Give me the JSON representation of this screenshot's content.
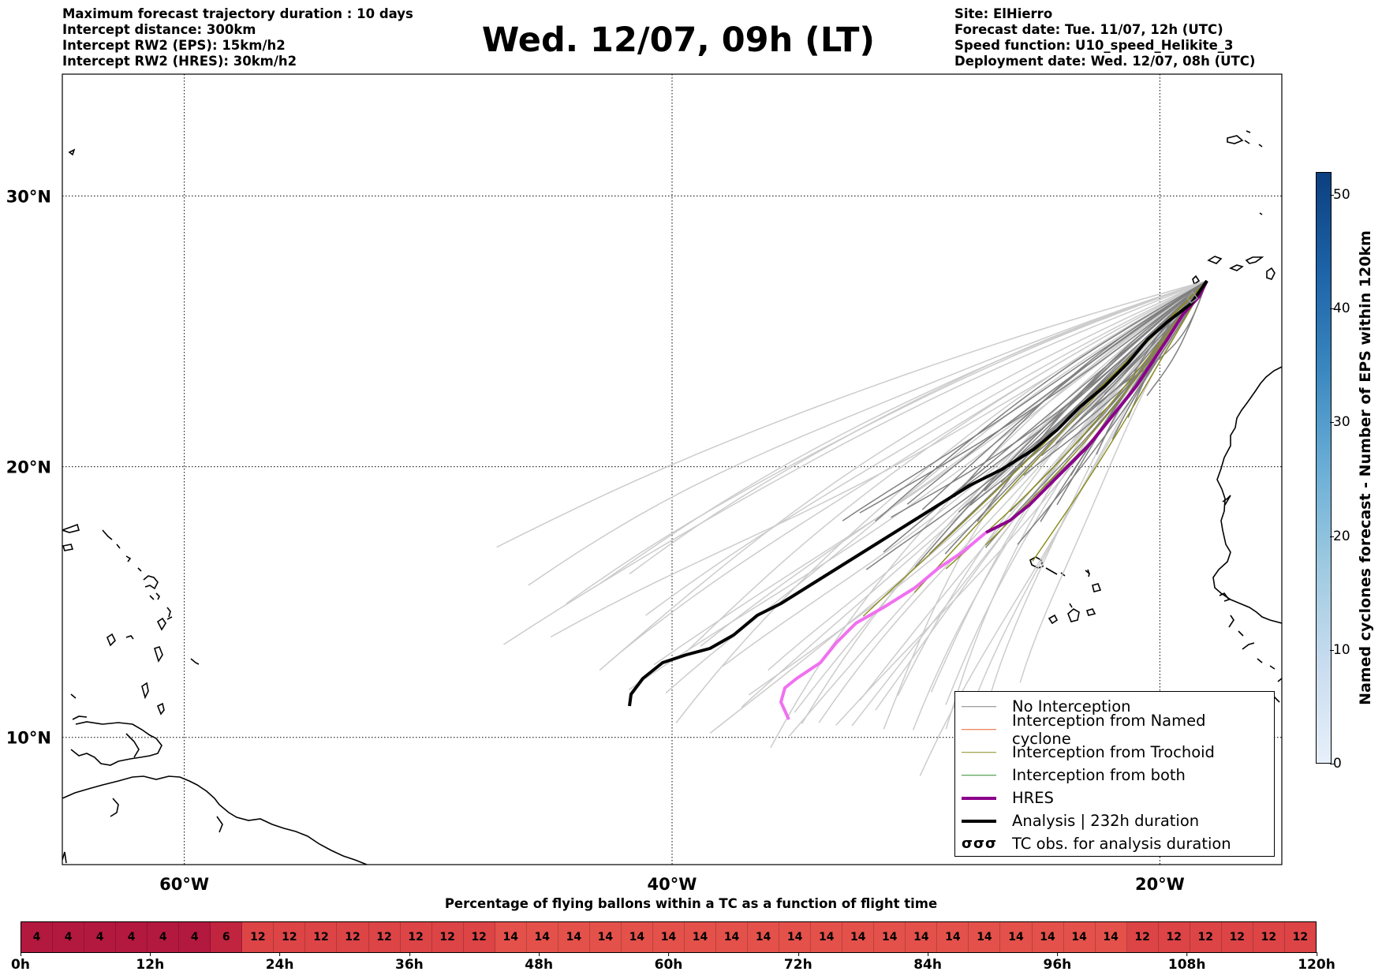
{
  "header": {
    "left_lines": [
      "Maximum forecast trajectory duration : 10 days",
      "Intercept distance: 300km",
      "Intercept RW2 (EPS):  15km/h2",
      "Intercept RW2 (HRES): 30km/h2"
    ],
    "title": "Wed. 12/07, 09h (LT)",
    "right_lines": [
      "Site: ElHierro",
      "Forecast date: Tue. 11/07, 12h (UTC)",
      "Speed function: U10_speed_Helikite_3",
      "Deployment date: Wed. 12/07, 08h (UTC)"
    ]
  },
  "map": {
    "lon_range": [
      -65,
      -15
    ],
    "lat_range": [
      5.3,
      34.5
    ],
    "lat_labels": [
      "30°N",
      "20°N",
      "10°N"
    ],
    "lon_labels": [
      "60°W",
      "40°W",
      "20°W"
    ],
    "colors": {
      "no_interception": "#808080",
      "named_cyclone": "#e8612c",
      "trochoid": "#8b8b1e",
      "both": "#2e8b2e",
      "hres": "#8b008b",
      "analysis": "#000000",
      "eps_far": "#cccccc",
      "hres_far": "#f070f0"
    }
  },
  "legend": {
    "items": [
      {
        "label": "No Interception",
        "color": "#808080",
        "width": 1.5
      },
      {
        "label": "Interception from Named cyclone",
        "color": "#e8612c",
        "width": 1.5
      },
      {
        "label": "Interception from Trochoid",
        "color": "#8b8b1e",
        "width": 1.5
      },
      {
        "label": "Interception from both",
        "color": "#2e8b2e",
        "width": 1.5
      },
      {
        "label": "HRES",
        "color": "#8b008b",
        "width": 4
      },
      {
        "label": "Analysis | 232h duration",
        "color": "#000000",
        "width": 4
      }
    ],
    "tc_symbol": "σσσ",
    "tc_label": "TC obs. for analysis duration"
  },
  "colorbar": {
    "label": "Named cyclones forecast - Number of EPS within 120km",
    "ticks": [
      "0",
      "10",
      "20",
      "30",
      "40",
      "50"
    ],
    "range": [
      0,
      52
    ]
  },
  "bottom": {
    "title": "Percentage of flying ballons within a TC as a function of flight time",
    "cells": [
      "4",
      "4",
      "4",
      "4",
      "4",
      "4",
      "6",
      "12",
      "12",
      "12",
      "12",
      "12",
      "12",
      "12",
      "12",
      "14",
      "14",
      "14",
      "14",
      "14",
      "14",
      "14",
      "14",
      "14",
      "14",
      "14",
      "14",
      "14",
      "14",
      "14",
      "14",
      "14",
      "14",
      "14",
      "14",
      "12",
      "12",
      "12",
      "12",
      "12",
      "12"
    ],
    "time_ticks": [
      "0h",
      "12h",
      "24h",
      "36h",
      "48h",
      "60h",
      "72h",
      "84h",
      "96h",
      "108h",
      "120h"
    ],
    "cell_colors": {
      "4": "#b3183f",
      "6": "#c0243f",
      "12": "#dc4446",
      "14": "#e3514a"
    }
  }
}
